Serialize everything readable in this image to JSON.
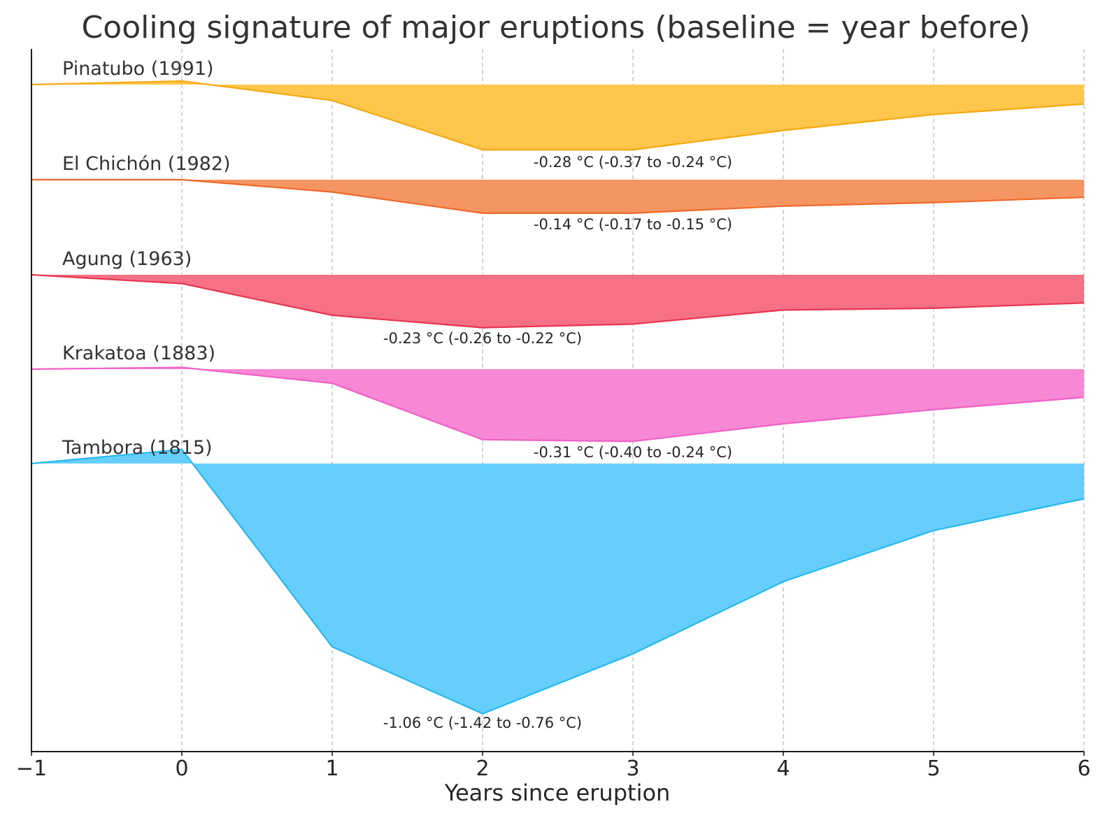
{
  "chart_data": {
    "type": "area",
    "title": "Cooling signature of major eruptions (baseline = year before)",
    "xlabel": "Years since eruption",
    "ylabel": "",
    "xlim": [
      -1,
      6
    ],
    "x": [
      -1,
      0,
      1,
      2,
      3,
      4,
      5,
      6
    ],
    "x_tick_labels": [
      "−1",
      "0",
      "1",
      "2",
      "3",
      "4",
      "5",
      "6"
    ],
    "grid": "vertical dashed at each year",
    "layout": "ridgeline (stacked offset baselines, one per eruption)",
    "series": [
      {
        "name": "Pinatubo (1991)",
        "color": "#F4A810",
        "fill": "#FFC64C",
        "values": [
          0.0,
          0.02,
          -0.09,
          -0.37,
          -0.37,
          -0.26,
          -0.17,
          -0.11
        ],
        "annotation": "-0.28 °C (-0.37 to -0.24 °C)"
      },
      {
        "name": "El Chichón (1982)",
        "color": "#EE6A2B",
        "fill": "#F59562",
        "values": [
          0.0,
          0.0,
          -0.07,
          -0.19,
          -0.19,
          -0.15,
          -0.13,
          -0.1
        ],
        "annotation": "-0.14 °C (-0.17 to -0.15 °C)"
      },
      {
        "name": "Agung (1963)",
        "color": "#E8354F",
        "fill": "#F67086",
        "values": [
          0.0,
          -0.05,
          -0.23,
          -0.3,
          -0.28,
          -0.2,
          -0.19,
          -0.16
        ],
        "annotation": "-0.23 °C (-0.26 to -0.22 °C)"
      },
      {
        "name": "Krakatoa (1883)",
        "color": "#F061C4",
        "fill": "#F888D5",
        "values": [
          0.0,
          0.01,
          -0.08,
          -0.4,
          -0.41,
          -0.31,
          -0.23,
          -0.16
        ],
        "annotation": "-0.31 °C (-0.40 to -0.24 °C)"
      },
      {
        "name": "Tambora (1815)",
        "color": "#25B8EE",
        "fill": "#66CEFC",
        "values": [
          0.0,
          0.08,
          -1.04,
          -1.42,
          -1.08,
          -0.67,
          -0.38,
          -0.2
        ],
        "annotation": "-1.06 °C (-1.42 to -0.76 °C)"
      }
    ]
  }
}
